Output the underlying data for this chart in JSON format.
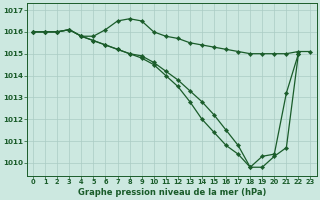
{
  "background_color": "#cce8e0",
  "grid_color": "#aaccc4",
  "line_color": "#1a5c2a",
  "xlabel": "Graphe pression niveau de la mer (hPa)",
  "ylim": [
    1009.4,
    1017.3
  ],
  "xlim": [
    -0.5,
    23.5
  ],
  "yticks": [
    1010,
    1011,
    1012,
    1013,
    1014,
    1015,
    1016,
    1017
  ],
  "xticks": [
    0,
    1,
    2,
    3,
    4,
    5,
    6,
    7,
    8,
    9,
    10,
    11,
    12,
    13,
    14,
    15,
    16,
    17,
    18,
    19,
    20,
    21,
    22,
    23
  ],
  "series1": [
    1016.0,
    1016.0,
    1016.0,
    1016.1,
    1015.8,
    1015.8,
    1016.1,
    1016.5,
    1016.6,
    1016.5,
    1016.0,
    1015.8,
    1015.7,
    1015.5,
    1015.4,
    1015.3,
    1015.2,
    1015.1,
    1015.0,
    1015.0,
    1015.0,
    1015.0,
    1015.1,
    1015.1
  ],
  "series2": [
    1016.0,
    1016.0,
    1016.0,
    1016.1,
    1015.8,
    1015.6,
    1015.4,
    1015.2,
    1015.0,
    1014.8,
    1014.5,
    1014.0,
    1013.5,
    1012.8,
    1012.0,
    1011.4,
    1010.8,
    1010.4,
    1009.8,
    1010.3,
    1010.4,
    1013.2,
    1015.0,
    null
  ],
  "series3": [
    1016.0,
    1016.0,
    1016.0,
    1016.1,
    1015.8,
    1015.6,
    1015.4,
    1015.2,
    1015.0,
    1014.9,
    1014.6,
    1014.2,
    1013.8,
    1013.3,
    1012.8,
    1012.2,
    1011.5,
    1010.8,
    1009.8,
    1009.8,
    1010.3,
    1010.7,
    1015.0,
    null
  ]
}
